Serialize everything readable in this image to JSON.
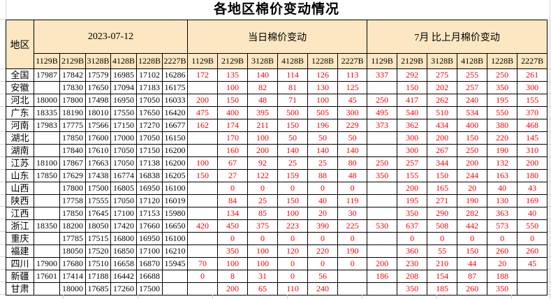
{
  "title": "各地区棉价变动情况",
  "colors": {
    "header_bg": "#fce7c2",
    "change_text": "#ff0000",
    "border": "#000000",
    "grid": "#d4d4d4"
  },
  "table": {
    "region_header": "地区",
    "groups": [
      {
        "label": "2023-07-12",
        "columns": [
          "1129B",
          "2129B",
          "3128B",
          "4128B",
          "1228B",
          "2227B"
        ]
      },
      {
        "label": "当日棉价变动",
        "columns": [
          "1129B",
          "2129B",
          "3128B",
          "4128B",
          "1228B",
          "2227B"
        ]
      },
      {
        "label": "7月 比上月棉价变动",
        "columns": [
          "1129B",
          "2129B",
          "3128B",
          "4128B",
          "1228B",
          "2227B"
        ]
      }
    ],
    "rows": [
      {
        "region": "全国",
        "prices": [
          17987,
          17842,
          17579,
          16985,
          17102,
          16286
        ],
        "daily": [
          172,
          135,
          140,
          114,
          126,
          113
        ],
        "monthly": [
          337,
          292,
          275,
          255,
          250,
          261
        ]
      },
      {
        "region": "安徽",
        "prices": [
          null,
          17830,
          17650,
          17094,
          17183,
          16175
        ],
        "daily": [
          null,
          100,
          82,
          81,
          130,
          125
        ],
        "monthly": [
          null,
          150,
          202,
          257,
          350,
          300
        ]
      },
      {
        "region": "河北",
        "prices": [
          18000,
          17800,
          17498,
          16950,
          17050,
          16033
        ],
        "daily": [
          200,
          150,
          48,
          71,
          100,
          45
        ],
        "monthly": [
          250,
          417,
          262,
          240,
          195,
          155
        ]
      },
      {
        "region": "广东",
        "prices": [
          18335,
          18190,
          18010,
          17550,
          17650,
          16420
        ],
        "daily": [
          475,
          400,
          395,
          500,
          505,
          300
        ],
        "monthly": [
          495,
          540,
          510,
          534,
          550,
          370
        ]
      },
      {
        "region": "河南",
        "prices": [
          17983,
          17775,
          17566,
          17150,
          17270,
          16677
        ],
        "daily": [
          162,
          174,
          211,
          150,
          196,
          229
        ],
        "monthly": [
          373,
          362,
          434,
          400,
          380,
          468
        ]
      },
      {
        "region": "湖北",
        "prices": [
          null,
          17850,
          17600,
          17000,
          17050,
          16150
        ],
        "daily": [
          null,
          170,
          100,
          50,
          50,
          50
        ],
        "monthly": [
          null,
          300,
          200,
          150,
          220,
          145
        ]
      },
      {
        "region": "湖南",
        "prices": [
          null,
          17840,
          17610,
          17050,
          17150,
          16200
        ],
        "daily": [
          null,
          160,
          200,
          140,
          140,
          140
        ],
        "monthly": [
          null,
          300,
          267,
          250,
          190,
          310
        ]
      },
      {
        "region": "江苏",
        "prices": [
          18100,
          17867,
          17663,
          17050,
          17138,
          16200
        ],
        "daily": [
          100,
          67,
          92,
          25,
          25,
          80
        ],
        "monthly": [
          250,
          257,
          344,
          200,
          132,
          200
        ]
      },
      {
        "region": "山东",
        "prices": [
          17850,
          17629,
          17438,
          16774,
          16838,
          16205
        ],
        "daily": [
          150,
          27,
          122,
          159,
          88,
          48
        ],
        "monthly": [
          350,
          155,
          150,
          244,
          163,
          180
        ]
      },
      {
        "region": "山西",
        "prices": [
          null,
          17800,
          17500,
          16805,
          16950,
          16100
        ],
        "daily": [
          null,
          0,
          0,
          0,
          0,
          0
        ],
        "monthly": [
          null,
          200,
          165,
          20,
          40,
          43
        ]
      },
      {
        "region": "陕西",
        "prices": [
          null,
          17758,
          17555,
          17050,
          17120,
          16019
        ],
        "daily": [
          null,
          84,
          25,
          150,
          40,
          119
        ],
        "monthly": [
          null,
          195,
          271,
          190,
          130,
          169
        ]
      },
      {
        "region": "江西",
        "prices": [
          null,
          17850,
          17645,
          17100,
          17153,
          15980
        ],
        "daily": [
          null,
          134,
          85,
          100,
          20,
          30
        ],
        "monthly": [
          null,
          350,
          290,
          282,
          363,
          40
        ]
      },
      {
        "region": "浙江",
        "prices": [
          18350,
          18200,
          18050,
          17420,
          17660,
          16650
        ],
        "daily": [
          420,
          450,
          375,
          223,
          390,
          225
        ],
        "monthly": [
          530,
          637,
          508,
          442,
          573,
          550
        ]
      },
      {
        "region": "重庆",
        "prices": [
          null,
          17785,
          17515,
          16800,
          16950,
          16100
        ],
        "daily": [
          null,
          0,
          0,
          0,
          0,
          0
        ],
        "monthly": [
          null,
          0,
          0,
          0,
          0,
          0
        ]
      },
      {
        "region": "福建",
        "prices": [
          null,
          18050,
          17520,
          16850,
          17100,
          16210
        ],
        "daily": [
          null,
          350,
          100,
          120,
          220,
          190
        ],
        "monthly": [
          null,
          360,
          55,
          150,
          260,
          260
        ]
      },
      {
        "region": "四川",
        "prices": [
          17900,
          17680,
          17510,
          16658,
          16870,
          15945
        ],
        "daily": [
          70,
          100,
          100,
          0,
          0,
          0
        ],
        "monthly": [
          200,
          230,
          210,
          44,
          20,
          45
        ]
      },
      {
        "region": "新疆",
        "prices": [
          17601,
          17414,
          17188,
          16442,
          16688,
          null
        ],
        "daily": [
          0,
          8,
          31,
          0,
          56,
          null
        ],
        "monthly": [
          186,
          208,
          154,
          87,
          188,
          null
        ]
      },
      {
        "region": "甘肃",
        "prices": [
          null,
          18000,
          17685,
          17260,
          17500,
          null
        ],
        "daily": [
          null,
          200,
          65,
          110,
          240,
          null
        ],
        "monthly": [
          null,
          350,
          185,
          260,
          350,
          null
        ]
      }
    ]
  }
}
